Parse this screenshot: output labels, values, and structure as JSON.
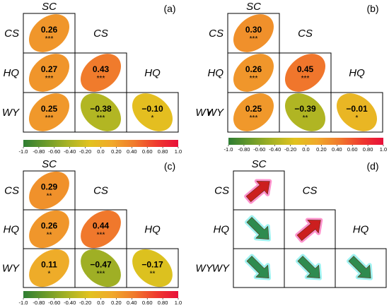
{
  "colors": {
    "scale": [
      "#2e7d32",
      "#6a9a2a",
      "#a8b324",
      "#e2c21e",
      "#f0a92a",
      "#f07b2c",
      "#ef3b2e",
      "#e8103a"
    ],
    "arrow_pos": "#cc1f1f",
    "arrow_neg": "#2e8b4f",
    "arrow_glow_pos": "#ff7fc4",
    "arrow_glow_neg": "#8ff1ef"
  },
  "chart_data": [
    {
      "type": "heatmap",
      "panel_label": "(a)",
      "variables": [
        "SC",
        "CS",
        "HQ",
        "WY"
      ],
      "colorbar_ticks": [
        "-1.0",
        "-0.80",
        "-0.60",
        "-0.40",
        "-0.20",
        "0.0",
        "0.20",
        "0.40",
        "0.60",
        "0.80",
        "1.0"
      ],
      "pairs": [
        {
          "row": "CS",
          "col": "SC",
          "value": 0.26,
          "value_label": "0.26",
          "sig": "***"
        },
        {
          "row": "HQ",
          "col": "SC",
          "value": 0.27,
          "value_label": "0.27",
          "sig": "***"
        },
        {
          "row": "HQ",
          "col": "CS",
          "value": 0.43,
          "value_label": "0.43",
          "sig": "***"
        },
        {
          "row": "WY",
          "col": "SC",
          "value": 0.25,
          "value_label": "0.25",
          "sig": "***"
        },
        {
          "row": "WY",
          "col": "CS",
          "value": -0.38,
          "value_label": "−0.38",
          "sig": "***"
        },
        {
          "row": "WY",
          "col": "HQ",
          "value": -0.1,
          "value_label": "−0.10",
          "sig": "*"
        }
      ]
    },
    {
      "type": "heatmap",
      "panel_label": "(b)",
      "variables": [
        "SC",
        "CS",
        "HQ",
        "WY"
      ],
      "colorbar_ticks": [
        "-1.0",
        "-0.80",
        "-0.60",
        "-0.40",
        "-0.20",
        "0.0",
        "0.20",
        "0.40",
        "0.60",
        "0.80",
        "1.0"
      ],
      "pairs": [
        {
          "row": "CS",
          "col": "SC",
          "value": 0.3,
          "value_label": "0.30",
          "sig": "***"
        },
        {
          "row": "HQ",
          "col": "SC",
          "value": 0.26,
          "value_label": "0.26",
          "sig": "***"
        },
        {
          "row": "HQ",
          "col": "CS",
          "value": 0.45,
          "value_label": "0.45",
          "sig": "***"
        },
        {
          "row": "WY",
          "col": "SC",
          "value": 0.25,
          "value_label": "0.25",
          "sig": "***"
        },
        {
          "row": "WY",
          "col": "CS",
          "value": -0.39,
          "value_label": "−0.39",
          "sig": "**"
        },
        {
          "row": "WY",
          "col": "HQ",
          "value": -0.01,
          "value_label": "−0.01",
          "sig": "*"
        }
      ]
    },
    {
      "type": "heatmap",
      "panel_label": "(c)",
      "variables": [
        "SC",
        "CS",
        "HQ",
        "WY"
      ],
      "colorbar_ticks": [
        "-1.0",
        "-0.80",
        "-0.60",
        "-0.40",
        "-0.20",
        "0.0",
        "0.20",
        "0.40",
        "0.60",
        "0.80",
        "1.0"
      ],
      "pairs": [
        {
          "row": "CS",
          "col": "SC",
          "value": 0.29,
          "value_label": "0.29",
          "sig": "**"
        },
        {
          "row": "HQ",
          "col": "SC",
          "value": 0.26,
          "value_label": "0.26",
          "sig": "**"
        },
        {
          "row": "HQ",
          "col": "CS",
          "value": 0.44,
          "value_label": "0.44",
          "sig": "***"
        },
        {
          "row": "WY",
          "col": "SC",
          "value": 0.11,
          "value_label": "0.11",
          "sig": "*"
        },
        {
          "row": "WY",
          "col": "CS",
          "value": -0.47,
          "value_label": "−0.47",
          "sig": "***"
        },
        {
          "row": "WY",
          "col": "HQ",
          "value": -0.17,
          "value_label": "−0.17",
          "sig": "**"
        }
      ]
    },
    {
      "type": "heatmap",
      "panel_label": "(d)",
      "variables": [
        "SC",
        "CS",
        "HQ",
        "WY"
      ],
      "pairs": [
        {
          "row": "CS",
          "col": "SC",
          "direction": "up"
        },
        {
          "row": "HQ",
          "col": "SC",
          "direction": "down"
        },
        {
          "row": "HQ",
          "col": "CS",
          "direction": "up"
        },
        {
          "row": "WY",
          "col": "SC",
          "direction": "down"
        },
        {
          "row": "WY",
          "col": "CS",
          "direction": "down"
        },
        {
          "row": "WY",
          "col": "HQ",
          "direction": "down"
        }
      ]
    }
  ]
}
